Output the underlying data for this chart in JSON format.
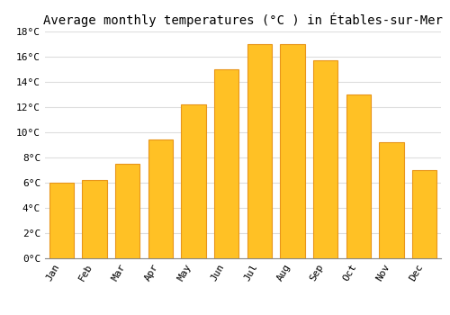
{
  "title": "Average monthly temperatures (°C ) in Étables-sur-Mer",
  "months": [
    "Jan",
    "Feb",
    "Mar",
    "Apr",
    "May",
    "Jun",
    "Jul",
    "Aug",
    "Sep",
    "Oct",
    "Nov",
    "Dec"
  ],
  "values": [
    6.0,
    6.2,
    7.5,
    9.4,
    12.2,
    15.0,
    17.0,
    17.0,
    15.7,
    13.0,
    9.2,
    7.0
  ],
  "bar_color": "#FFC125",
  "bar_edge_color": "#E8951A",
  "background_color": "#FFFFFF",
  "grid_color": "#DDDDDD",
  "ylim": [
    0,
    18
  ],
  "yticks": [
    0,
    2,
    4,
    6,
    8,
    10,
    12,
    14,
    16,
    18
  ],
  "title_fontsize": 10,
  "tick_fontsize": 8,
  "font_family": "monospace"
}
